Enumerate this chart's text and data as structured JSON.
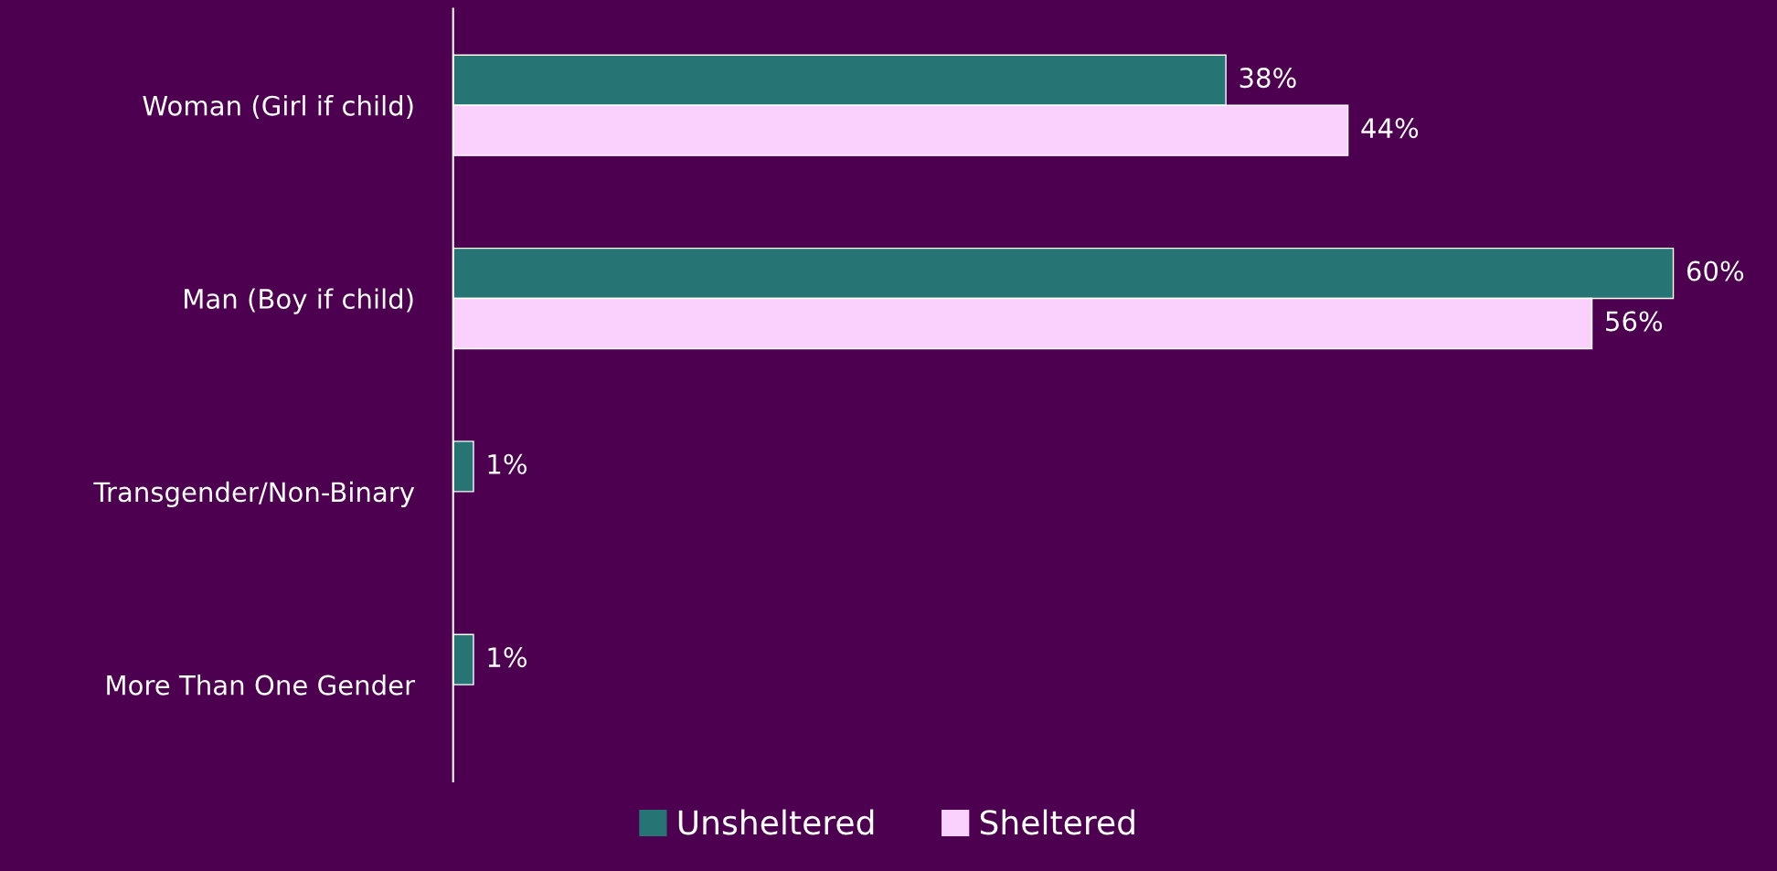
{
  "chart_data": {
    "type": "bar",
    "orientation": "horizontal",
    "categories": [
      "Woman (Girl if child)",
      "Man (Boy if child)",
      "Transgender/Non-Binary",
      "More Than One Gender"
    ],
    "series": [
      {
        "name": "Unsheltered",
        "color": "#267574",
        "values": [
          38,
          60,
          1,
          1
        ],
        "value_labels": [
          "38%",
          "60%",
          "1%",
          "1%"
        ]
      },
      {
        "name": "Sheltered",
        "color": "#f9d1fc",
        "values": [
          44,
          56,
          null,
          null
        ],
        "value_labels": [
          "44%",
          "56%",
          null,
          null
        ]
      }
    ],
    "legend": "bottom",
    "grid": false,
    "tick_labels": "y"
  }
}
